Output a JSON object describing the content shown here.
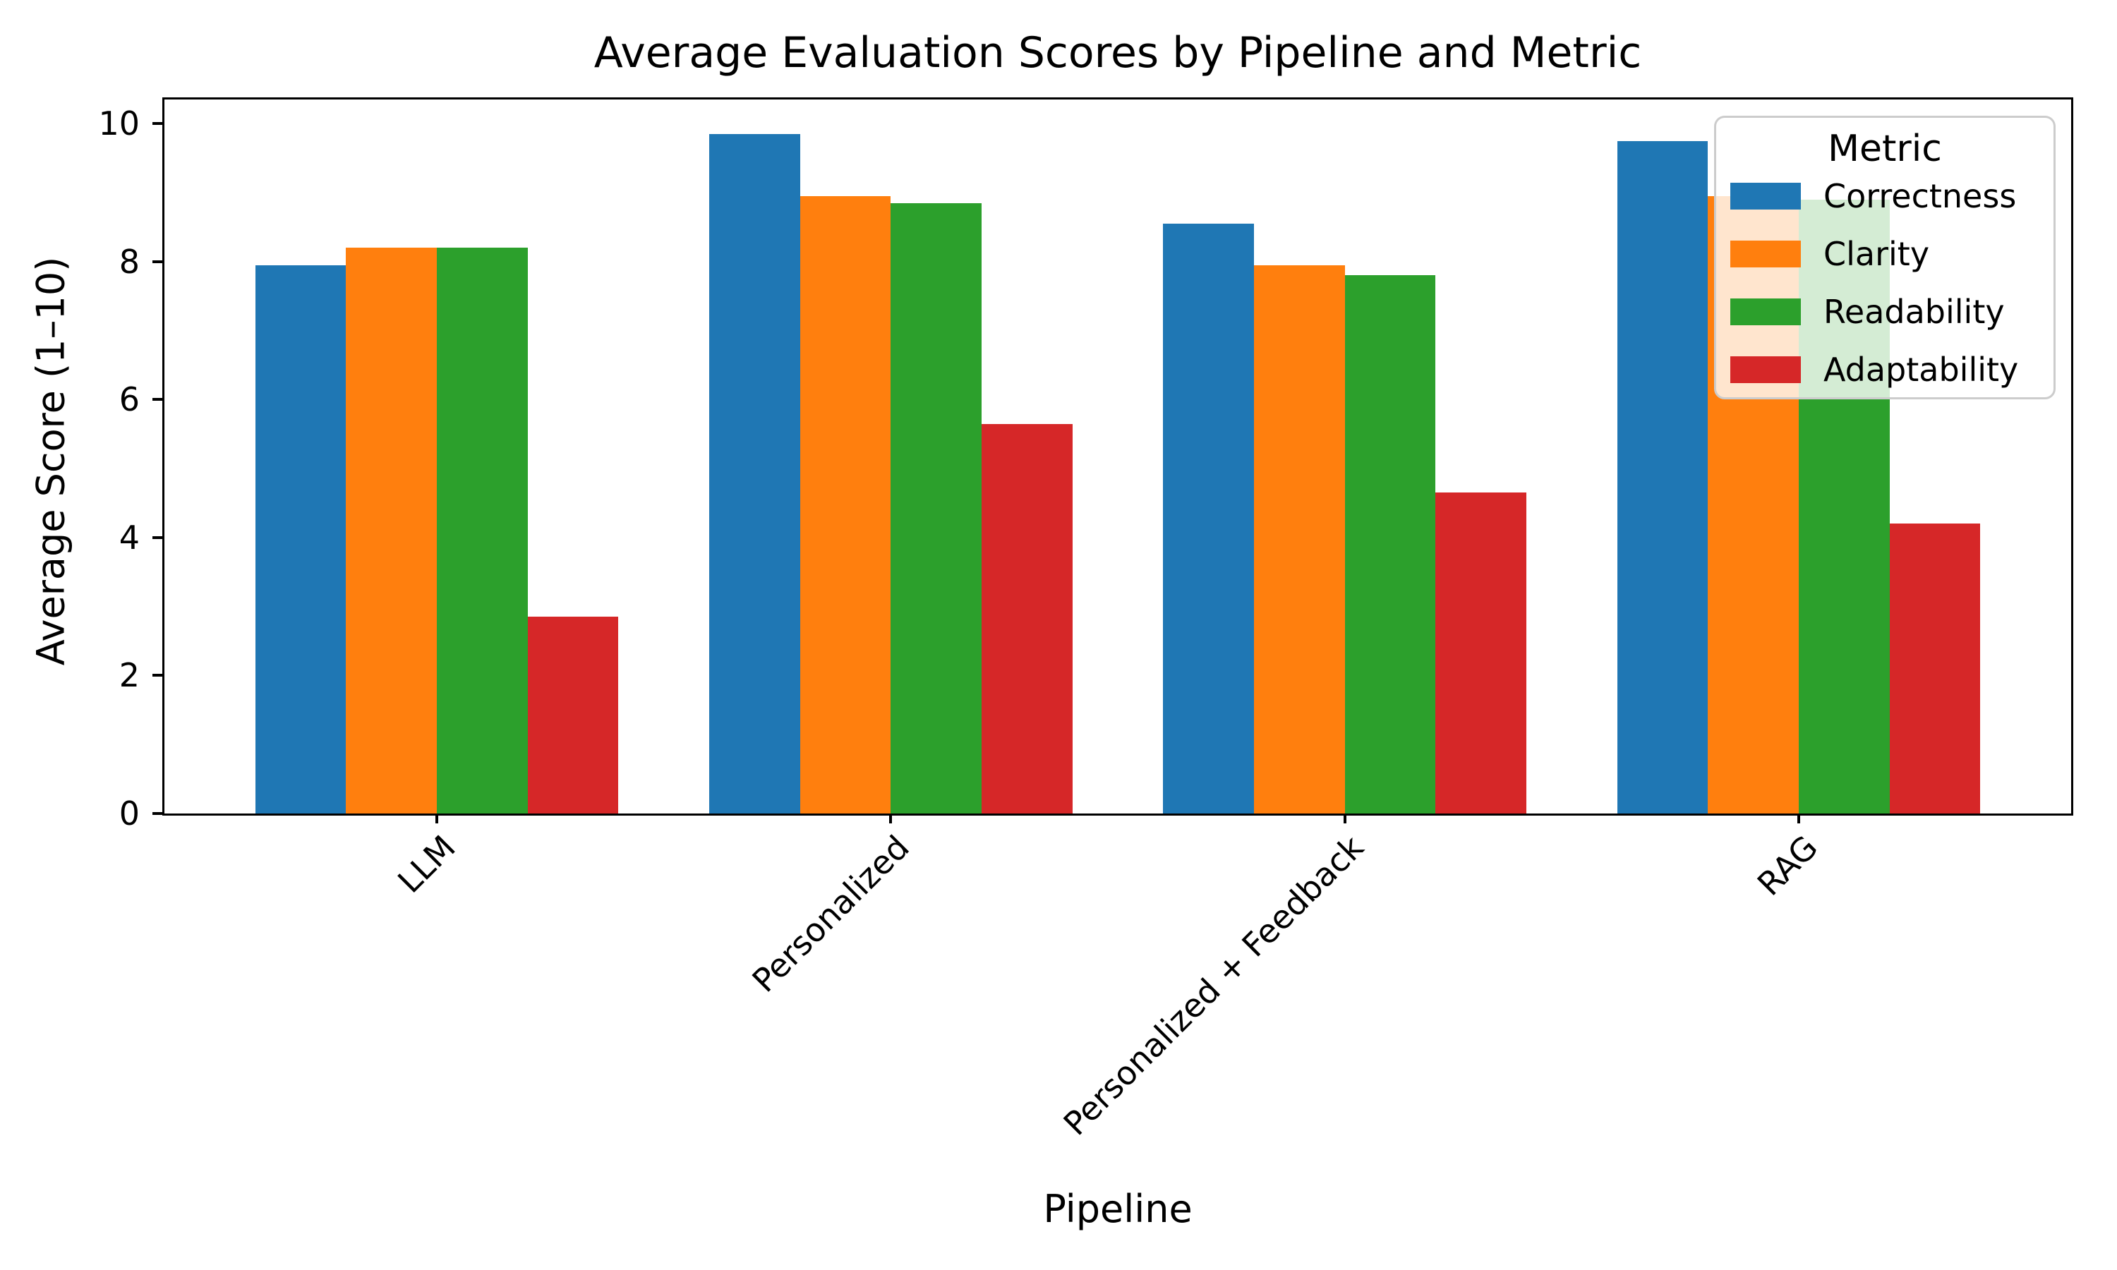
{
  "chart_data": {
    "type": "bar",
    "title": "Average Evaluation Scores by Pipeline and Metric",
    "xlabel": "Pipeline",
    "ylabel": "Average Score (1–10)",
    "categories": [
      "LLM",
      "Personalized",
      "Personalized + Feedback",
      "RAG"
    ],
    "series": [
      {
        "name": "Correctness",
        "color": "#1f77b4",
        "values": [
          7.95,
          9.85,
          8.55,
          9.75
        ]
      },
      {
        "name": "Clarity",
        "color": "#ff7f0e",
        "values": [
          8.2,
          8.95,
          7.95,
          8.95
        ]
      },
      {
        "name": "Readability",
        "color": "#2ca02c",
        "values": [
          8.2,
          8.85,
          7.8,
          8.9
        ]
      },
      {
        "name": "Adaptability",
        "color": "#d62728",
        "values": [
          2.85,
          5.65,
          4.65,
          4.2
        ]
      }
    ],
    "yticks": [
      0,
      2,
      4,
      6,
      8,
      10
    ],
    "ylim": [
      0,
      10.35
    ],
    "xlim": [
      -0.6,
      3.6
    ],
    "bar_width": 0.2,
    "xtick_rotation": 45,
    "grid": false,
    "legend_title": "Metric",
    "legend_position": "upper right",
    "axis_color": "#000000",
    "background_color": "#ffffff"
  }
}
